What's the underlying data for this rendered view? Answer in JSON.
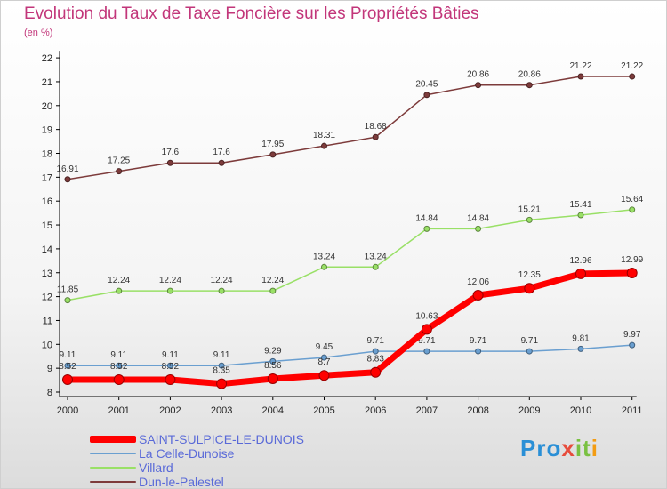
{
  "header": {
    "title": "Evolution du Taux de Taxe Foncière sur les Propriétés Bâties",
    "unit": "(en %)"
  },
  "logo": {
    "text": "Proxiti",
    "part1": "Pro",
    "part2": "x",
    "part3": "it",
    "part4": "i"
  },
  "colors": {
    "saint_sulpice": "#ff0000",
    "la_celle": "#6a9fd0",
    "villard": "#99e066",
    "dun": "#7d3b3b",
    "title": "#c2367a",
    "legend_text": "#5a6ad8"
  },
  "chart_data": {
    "type": "line",
    "title": "Evolution du Taux de Taxe Foncière sur les Propriétés Bâties",
    "ylabel": "(en %)",
    "xlabel": "",
    "ylim": [
      8,
      22
    ],
    "yticks": [
      "8",
      "9",
      "10",
      "11",
      "12",
      "13",
      "14",
      "15",
      "16",
      "17",
      "18",
      "19",
      "20",
      "21",
      "22"
    ],
    "categories": [
      "2000",
      "2001",
      "2002",
      "2003",
      "2004",
      "2005",
      "2006",
      "2007",
      "2008",
      "2009",
      "2010",
      "2011"
    ],
    "grid": false,
    "legend_position": "bottom-left",
    "series": [
      {
        "name": "Dun-le-Palestel",
        "color": "#7d3b3b",
        "values": [
          16.91,
          17.25,
          17.6,
          17.6,
          17.95,
          18.31,
          18.68,
          20.45,
          20.86,
          20.86,
          21.22,
          21.22
        ],
        "labels": [
          "16.91",
          "17.25",
          "17.6",
          "17.6",
          "17.95",
          "18.31",
          "18.68",
          "20.45",
          "20.86",
          "20.86",
          "21.22",
          "21.22"
        ]
      },
      {
        "name": "Villard",
        "color": "#99e066",
        "values": [
          11.85,
          12.24,
          12.24,
          12.24,
          12.24,
          13.24,
          13.24,
          14.84,
          14.84,
          15.21,
          15.41,
          15.64
        ],
        "labels": [
          "11.85",
          "12.24",
          "12.24",
          "12.24",
          "12.24",
          "13.24",
          "13.24",
          "14.84",
          "14.84",
          "15.21",
          "15.41",
          "15.64"
        ]
      },
      {
        "name": "La Celle-Dunoise",
        "color": "#6a9fd0",
        "values": [
          9.11,
          9.11,
          9.11,
          9.11,
          9.29,
          9.45,
          9.71,
          9.71,
          9.71,
          9.71,
          9.81,
          9.97
        ],
        "labels": [
          "9.11",
          "9.11",
          "9.11",
          "9.11",
          "9.29",
          "9.45",
          "9.71",
          "9.71",
          "9.71",
          "9.71",
          "9.81",
          "9.97"
        ]
      },
      {
        "name": "SAINT-SULPICE-LE-DUNOIS",
        "color": "#ff0000",
        "values": [
          8.52,
          8.52,
          8.52,
          8.35,
          8.56,
          8.7,
          8.83,
          10.63,
          12.06,
          12.35,
          12.96,
          12.99
        ],
        "labels": [
          "8.52",
          "8.52",
          "8.52",
          "8.35",
          "8.56",
          "8.7",
          "8.83",
          "10.63",
          "12.06",
          "12.35",
          "12.96",
          "12.99"
        ]
      }
    ]
  }
}
